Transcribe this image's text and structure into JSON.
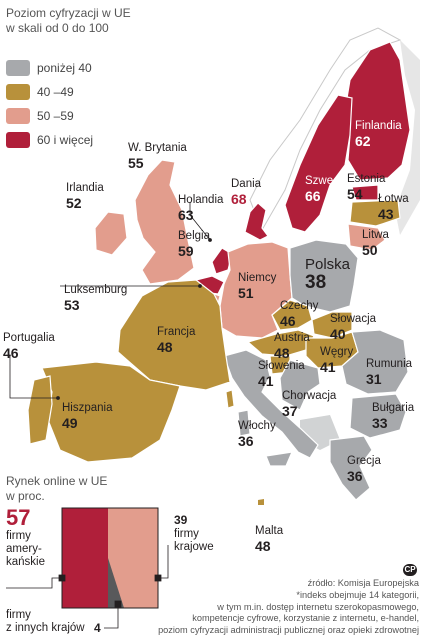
{
  "title": [
    "Poziom cyfryzacji w UE",
    "w skali od 0 do 100"
  ],
  "legend": [
    {
      "label": "poniżej 40",
      "color": "#a7a9ac"
    },
    {
      "label": "40 –49",
      "color": "#b8913b"
    },
    {
      "label": "50 –59",
      "color": "#e29d8d"
    },
    {
      "label": "60 i więcej",
      "color": "#b01f3a"
    }
  ],
  "countries": {
    "finland": {
      "name": "Finlandia",
      "value": "62"
    },
    "sweden": {
      "name": "Szwecja",
      "value": "66"
    },
    "denmark": {
      "name": "Dania",
      "value": "68"
    },
    "estonia": {
      "name": "Estonia",
      "value": "54"
    },
    "latvia": {
      "name": "Łotwa",
      "value": "43"
    },
    "lithuania": {
      "name": "Litwa",
      "value": "50"
    },
    "uk": {
      "name": "W. Brytania",
      "value": "55"
    },
    "ireland": {
      "name": "Irlandia",
      "value": "52"
    },
    "netherlands": {
      "name": "Holandia",
      "value": "63"
    },
    "belgium": {
      "name": "Belgia",
      "value": "59"
    },
    "luxembourg": {
      "name": "Luksemburg",
      "value": "53"
    },
    "germany": {
      "name": "Niemcy",
      "value": "51"
    },
    "poland": {
      "name": "Polska",
      "value": "38"
    },
    "czechia": {
      "name": "Czechy",
      "value": "46"
    },
    "slovakia": {
      "name": "Słowacja",
      "value": "40"
    },
    "austria": {
      "name": "Austria",
      "value": "48"
    },
    "hungary": {
      "name": "Węgry",
      "value": "41"
    },
    "slovenia": {
      "name": "Słowenia",
      "value": "41"
    },
    "croatia": {
      "name": "Chorwacja",
      "value": "37"
    },
    "romania": {
      "name": "Rumunia",
      "value": "31"
    },
    "bulgaria": {
      "name": "Bułgaria",
      "value": "33"
    },
    "greece": {
      "name": "Grecja",
      "value": "36"
    },
    "italy": {
      "name": "Włochy",
      "value": "36"
    },
    "france": {
      "name": "Francja",
      "value": "48"
    },
    "spain": {
      "name": "Hiszpania",
      "value": "49"
    },
    "portugal": {
      "name": "Portugalia",
      "value": "46"
    },
    "malta": {
      "name": "Malta",
      "value": "48"
    }
  },
  "online": {
    "title": [
      "Rynek online w UE",
      "w proc."
    ],
    "american": {
      "value": "57",
      "label": [
        "firmy",
        "amery-",
        "kańskie"
      ],
      "share": 57,
      "color": "#b01f3a"
    },
    "domestic": {
      "value": "39",
      "label": [
        "firmy",
        "krajowe"
      ],
      "share": 39,
      "color": "#e29d8d"
    },
    "other": {
      "value": "4",
      "label": [
        "firmy",
        "z innych krajów"
      ],
      "share": 4,
      "color": "#58595b"
    }
  },
  "source": [
    "źródło: Komisja Europejska",
    "*indeks obejmuje 14 kategorii,",
    "w tym m.in. dostęp internetu szerokopasmowego,",
    "kompetencje cyfrowe, korzystanie z internetu, e-handel,",
    "poziom cyfryzacji administracji publicznej oraz opieki zdrowotnej"
  ],
  "logo": "CP"
}
